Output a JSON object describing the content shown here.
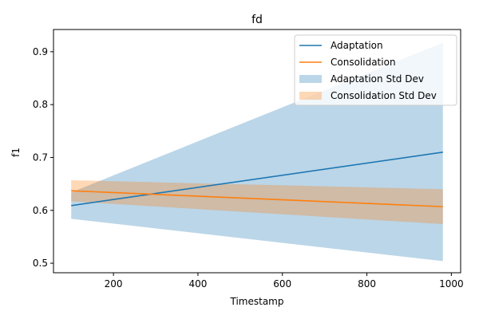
{
  "chart_data": {
    "type": "line",
    "title": "fd",
    "xlabel": "Timestamp",
    "ylabel": "f1",
    "xlim": [
      58,
      1022
    ],
    "ylim": [
      0.482,
      0.942
    ],
    "xticks": [
      200,
      400,
      600,
      800,
      1000
    ],
    "yticks": [
      0.5,
      0.6,
      0.7,
      0.8,
      0.9
    ],
    "ytick_labels": [
      "0.5",
      "0.6",
      "0.7",
      "0.8",
      "0.9"
    ],
    "grid": false,
    "legend_placement": "top-right",
    "series": [
      {
        "name": "Adaptation",
        "color": "#1f77b4",
        "x": [
          100,
          980
        ],
        "y": [
          0.609,
          0.71
        ]
      },
      {
        "name": "Consolidation",
        "color": "#ff7f0e",
        "x": [
          100,
          980
        ],
        "y": [
          0.637,
          0.607
        ]
      }
    ],
    "bands": [
      {
        "name": "Adaptation Std Dev",
        "color": "#1f77b4",
        "opacity": 0.3,
        "x": [
          100,
          980
        ],
        "lower": [
          0.584,
          0.504
        ],
        "upper": [
          0.634,
          0.917
        ]
      },
      {
        "name": "Consolidation Std Dev",
        "color": "#ff7f0e",
        "opacity": 0.3,
        "x": [
          100,
          980
        ],
        "lower": [
          0.617,
          0.574
        ],
        "upper": [
          0.657,
          0.64
        ]
      }
    ]
  }
}
